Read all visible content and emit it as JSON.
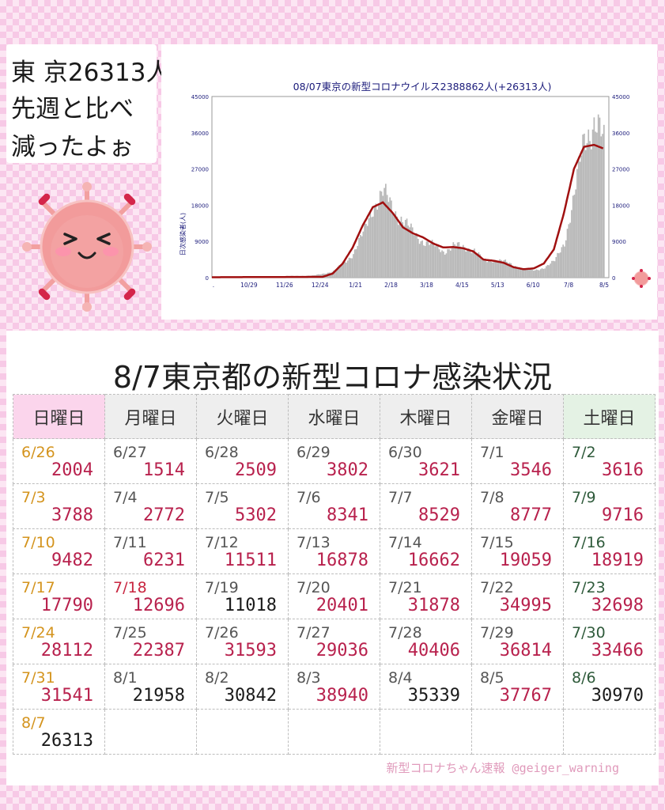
{
  "speech": {
    "lines": [
      "東 京26313人",
      "先週と比べ",
      "減ったよぉ"
    ]
  },
  "chart_data": {
    "type": "bar",
    "title": "08/07東京の新型コロナウイルス2388862人(+26313人)",
    "ylabel": "日次感染者(人)",
    "ylim": [
      0,
      45000
    ],
    "y_ticks": [
      0,
      9000,
      18000,
      27000,
      36000,
      45000
    ],
    "x_tick_labels": [
      ".",
      "10/29",
      "11/26",
      "12/24",
      "1/21",
      "2/18",
      "3/18",
      "4/15",
      "5/13",
      "6/10",
      "7/8",
      "8/5"
    ],
    "daily_points": [
      {
        "x": 0,
        "y": 250
      },
      {
        "x": 6,
        "y": 300
      },
      {
        "x": 10,
        "y": 500
      },
      {
        "x": 12,
        "y": 1500
      },
      {
        "x": 13,
        "y": 3500
      },
      {
        "x": 14,
        "y": 6000
      },
      {
        "x": 15,
        "y": 11000
      },
      {
        "x": 16,
        "y": 18000
      },
      {
        "x": 17,
        "y": 21000
      },
      {
        "x": 18,
        "y": 17000
      },
      {
        "x": 19,
        "y": 14000
      },
      {
        "x": 20,
        "y": 11000
      },
      {
        "x": 21,
        "y": 9000
      },
      {
        "x": 22,
        "y": 8000
      },
      {
        "x": 23,
        "y": 6500
      },
      {
        "x": 24,
        "y": 8000
      },
      {
        "x": 25,
        "y": 7500
      },
      {
        "x": 26,
        "y": 7000
      },
      {
        "x": 27,
        "y": 4000
      },
      {
        "x": 28,
        "y": 4500
      },
      {
        "x": 29,
        "y": 4000
      },
      {
        "x": 30,
        "y": 3000
      },
      {
        "x": 31,
        "y": 2000
      },
      {
        "x": 32,
        "y": 1800
      },
      {
        "x": 33,
        "y": 2500
      },
      {
        "x": 34,
        "y": 4000
      },
      {
        "x": 35,
        "y": 9000
      },
      {
        "x": 36,
        "y": 20000
      },
      {
        "x": 37,
        "y": 36000
      },
      {
        "x": 38,
        "y": 38000
      },
      {
        "x": 39,
        "y": 33000
      }
    ],
    "moving_average": [
      {
        "x": 0,
        "y": 100
      },
      {
        "x": 11,
        "y": 200
      },
      {
        "x": 12,
        "y": 1000
      },
      {
        "x": 13,
        "y": 3500
      },
      {
        "x": 14,
        "y": 7500
      },
      {
        "x": 15,
        "y": 13000
      },
      {
        "x": 16,
        "y": 17500
      },
      {
        "x": 17,
        "y": 18700
      },
      {
        "x": 18,
        "y": 16000
      },
      {
        "x": 19,
        "y": 12500
      },
      {
        "x": 20,
        "y": 11000
      },
      {
        "x": 21,
        "y": 10000
      },
      {
        "x": 22,
        "y": 8500
      },
      {
        "x": 23,
        "y": 7500
      },
      {
        "x": 24,
        "y": 7600
      },
      {
        "x": 25,
        "y": 7300
      },
      {
        "x": 26,
        "y": 6500
      },
      {
        "x": 27,
        "y": 4500
      },
      {
        "x": 28,
        "y": 4200
      },
      {
        "x": 29,
        "y": 3700
      },
      {
        "x": 30,
        "y": 2600
      },
      {
        "x": 31,
        "y": 2100
      },
      {
        "x": 32,
        "y": 2300
      },
      {
        "x": 33,
        "y": 3500
      },
      {
        "x": 34,
        "y": 7000
      },
      {
        "x": 35,
        "y": 16000
      },
      {
        "x": 36,
        "y": 27000
      },
      {
        "x": 37,
        "y": 32500
      },
      {
        "x": 38,
        "y": 33000
      },
      {
        "x": 39,
        "y": 32000
      }
    ]
  },
  "table": {
    "title": "8/7東京都の新型コロナ感染状況",
    "headers": [
      "日曜日",
      "月曜日",
      "火曜日",
      "水曜日",
      "木曜日",
      "金曜日",
      "土曜日"
    ],
    "rows": [
      [
        {
          "date": "6/26",
          "count": "2004"
        },
        {
          "date": "6/27",
          "count": "1514"
        },
        {
          "date": "6/28",
          "count": "2509"
        },
        {
          "date": "6/29",
          "count": "3802"
        },
        {
          "date": "6/30",
          "count": "3621"
        },
        {
          "date": "7/1",
          "count": "3546"
        },
        {
          "date": "7/2",
          "count": "3616"
        }
      ],
      [
        {
          "date": "7/3",
          "count": "3788"
        },
        {
          "date": "7/4",
          "count": "2772"
        },
        {
          "date": "7/5",
          "count": "5302"
        },
        {
          "date": "7/6",
          "count": "8341"
        },
        {
          "date": "7/7",
          "count": "8529"
        },
        {
          "date": "7/8",
          "count": "8777"
        },
        {
          "date": "7/9",
          "count": "9716"
        }
      ],
      [
        {
          "date": "7/10",
          "count": "9482"
        },
        {
          "date": "7/11",
          "count": "6231"
        },
        {
          "date": "7/12",
          "count": "11511"
        },
        {
          "date": "7/13",
          "count": "16878"
        },
        {
          "date": "7/14",
          "count": "16662"
        },
        {
          "date": "7/15",
          "count": "19059"
        },
        {
          "date": "7/16",
          "count": "18919"
        }
      ],
      [
        {
          "date": "7/17",
          "count": "17790"
        },
        {
          "date": "7/18",
          "count": "12696",
          "holiday": true
        },
        {
          "date": "7/19",
          "count": "11018",
          "black": true
        },
        {
          "date": "7/20",
          "count": "20401"
        },
        {
          "date": "7/21",
          "count": "31878"
        },
        {
          "date": "7/22",
          "count": "34995"
        },
        {
          "date": "7/23",
          "count": "32698"
        }
      ],
      [
        {
          "date": "7/24",
          "count": "28112"
        },
        {
          "date": "7/25",
          "count": "22387"
        },
        {
          "date": "7/26",
          "count": "31593"
        },
        {
          "date": "7/27",
          "count": "29036"
        },
        {
          "date": "7/28",
          "count": "40406"
        },
        {
          "date": "7/29",
          "count": "36814"
        },
        {
          "date": "7/30",
          "count": "33466"
        }
      ],
      [
        {
          "date": "7/31",
          "count": "31541"
        },
        {
          "date": "8/1",
          "count": "21958",
          "black": true
        },
        {
          "date": "8/2",
          "count": "30842",
          "black": true
        },
        {
          "date": "8/3",
          "count": "38940"
        },
        {
          "date": "8/4",
          "count": "35339",
          "black": true
        },
        {
          "date": "8/5",
          "count": "37767"
        },
        {
          "date": "8/6",
          "count": "30970",
          "black": true
        }
      ],
      [
        {
          "date": "8/7",
          "count": "26313",
          "black": true
        },
        null,
        null,
        null,
        null,
        null,
        null
      ]
    ]
  },
  "footer": "新型コロナちゃん速報 @geiger_warning",
  "colors": {
    "count_red": "#b8214d",
    "sunday_date": "#d4941e",
    "saturday_date": "#2e5a3a",
    "line": "#a01010",
    "bars": "#b8b8b8",
    "virus_body": "#f2908f"
  }
}
